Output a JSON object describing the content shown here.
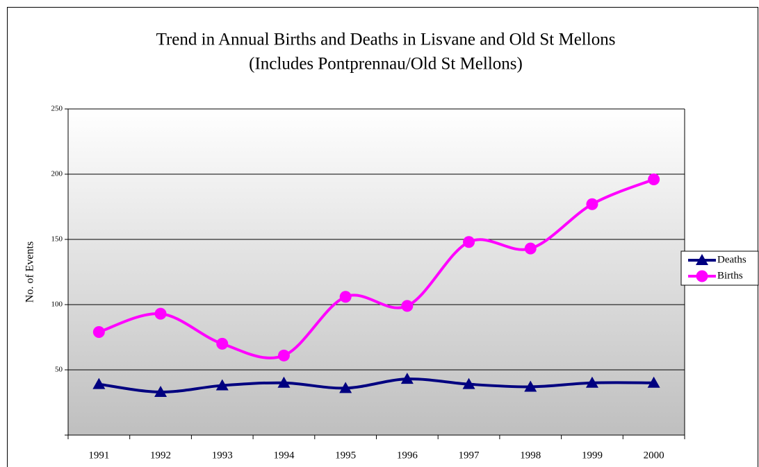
{
  "chart_data": {
    "type": "line",
    "title": "Trend in Annual Births and Deaths in Lisvane and Old St Mellons",
    "subtitle": "(Includes Pontprennau/Old St Mellons)",
    "y_label": "No. of Events",
    "categories": [
      "1991",
      "1992",
      "1993",
      "1994",
      "1995",
      "1996",
      "1997",
      "1998",
      "1999",
      "2000"
    ],
    "series": [
      {
        "name": "Deaths",
        "color": "#000080",
        "marker": "triangle",
        "values": [
          39,
          33,
          38,
          40,
          36,
          43,
          39,
          37,
          40,
          40
        ]
      },
      {
        "name": "Births",
        "color": "#ff00ff",
        "marker": "circle",
        "values": [
          79,
          93,
          70,
          61,
          106,
          99,
          148,
          143,
          177,
          196
        ]
      }
    ],
    "ylim": [
      0,
      250
    ],
    "yticks": [
      50,
      100,
      150,
      200,
      250
    ],
    "grid": true,
    "smooth": true,
    "legend": "right"
  }
}
